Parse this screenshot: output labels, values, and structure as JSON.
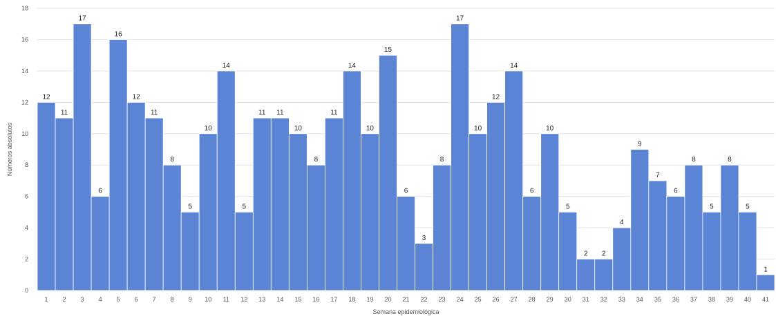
{
  "chart_data": {
    "type": "bar",
    "title": "",
    "xlabel": "Semana epidemiológica",
    "ylabel": "Números absolutos",
    "ylim": [
      0,
      18
    ],
    "yticks": [
      0,
      2,
      4,
      6,
      8,
      10,
      12,
      14,
      16,
      18
    ],
    "grid": true,
    "legend": "none",
    "bar_color": "#5b84d4",
    "categories": [
      "1",
      "2",
      "3",
      "4",
      "5",
      "6",
      "7",
      "8",
      "9",
      "10",
      "11",
      "12",
      "13",
      "14",
      "15",
      "16",
      "17",
      "18",
      "19",
      "20",
      "21",
      "22",
      "23",
      "24",
      "25",
      "26",
      "27",
      "28",
      "29",
      "30",
      "31",
      "32",
      "33",
      "34",
      "35",
      "36",
      "37",
      "38",
      "39",
      "40",
      "41"
    ],
    "values": [
      12,
      11,
      17,
      6,
      16,
      12,
      11,
      8,
      5,
      10,
      14,
      5,
      11,
      11,
      10,
      8,
      11,
      14,
      10,
      15,
      6,
      3,
      8,
      17,
      10,
      12,
      14,
      6,
      10,
      5,
      2,
      2,
      4,
      9,
      7,
      6,
      8,
      5,
      8,
      5,
      1
    ]
  }
}
